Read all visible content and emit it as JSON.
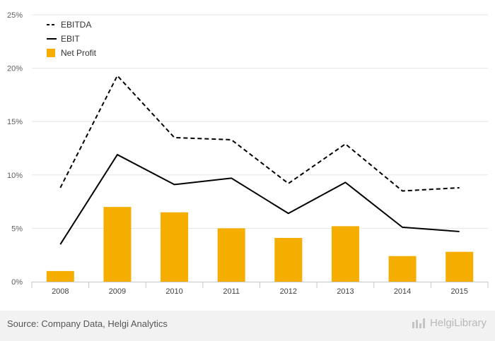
{
  "chart_data": {
    "type": "bar+line",
    "title": "",
    "categories": [
      "2008",
      "2009",
      "2010",
      "2011",
      "2012",
      "2013",
      "2014",
      "2015"
    ],
    "series": [
      {
        "name": "EBITDA",
        "kind": "line",
        "style": "dashed",
        "color": "#000000",
        "values": [
          8.8,
          19.3,
          13.5,
          13.3,
          9.2,
          12.9,
          8.5,
          8.8
        ]
      },
      {
        "name": "EBIT",
        "kind": "line",
        "style": "solid",
        "color": "#000000",
        "values": [
          3.5,
          11.9,
          9.1,
          9.7,
          6.4,
          9.3,
          5.1,
          4.7
        ]
      },
      {
        "name": "Net Profit",
        "kind": "bar",
        "color": "#f5ae00",
        "values": [
          1.0,
          7.0,
          6.5,
          5.0,
          4.1,
          5.2,
          2.4,
          2.8
        ]
      }
    ],
    "yticks": [
      0,
      5,
      10,
      15,
      20,
      25
    ],
    "ytick_labels": [
      "0%",
      "5%",
      "10%",
      "15%",
      "20%",
      "25%"
    ],
    "ylim": [
      0,
      25
    ],
    "xlabel": "",
    "ylabel": "",
    "legend": "top-left",
    "grid": true
  },
  "footer": {
    "source": "Source: Company Data, Helgi Analytics",
    "brand": "HelgiLibrary"
  }
}
